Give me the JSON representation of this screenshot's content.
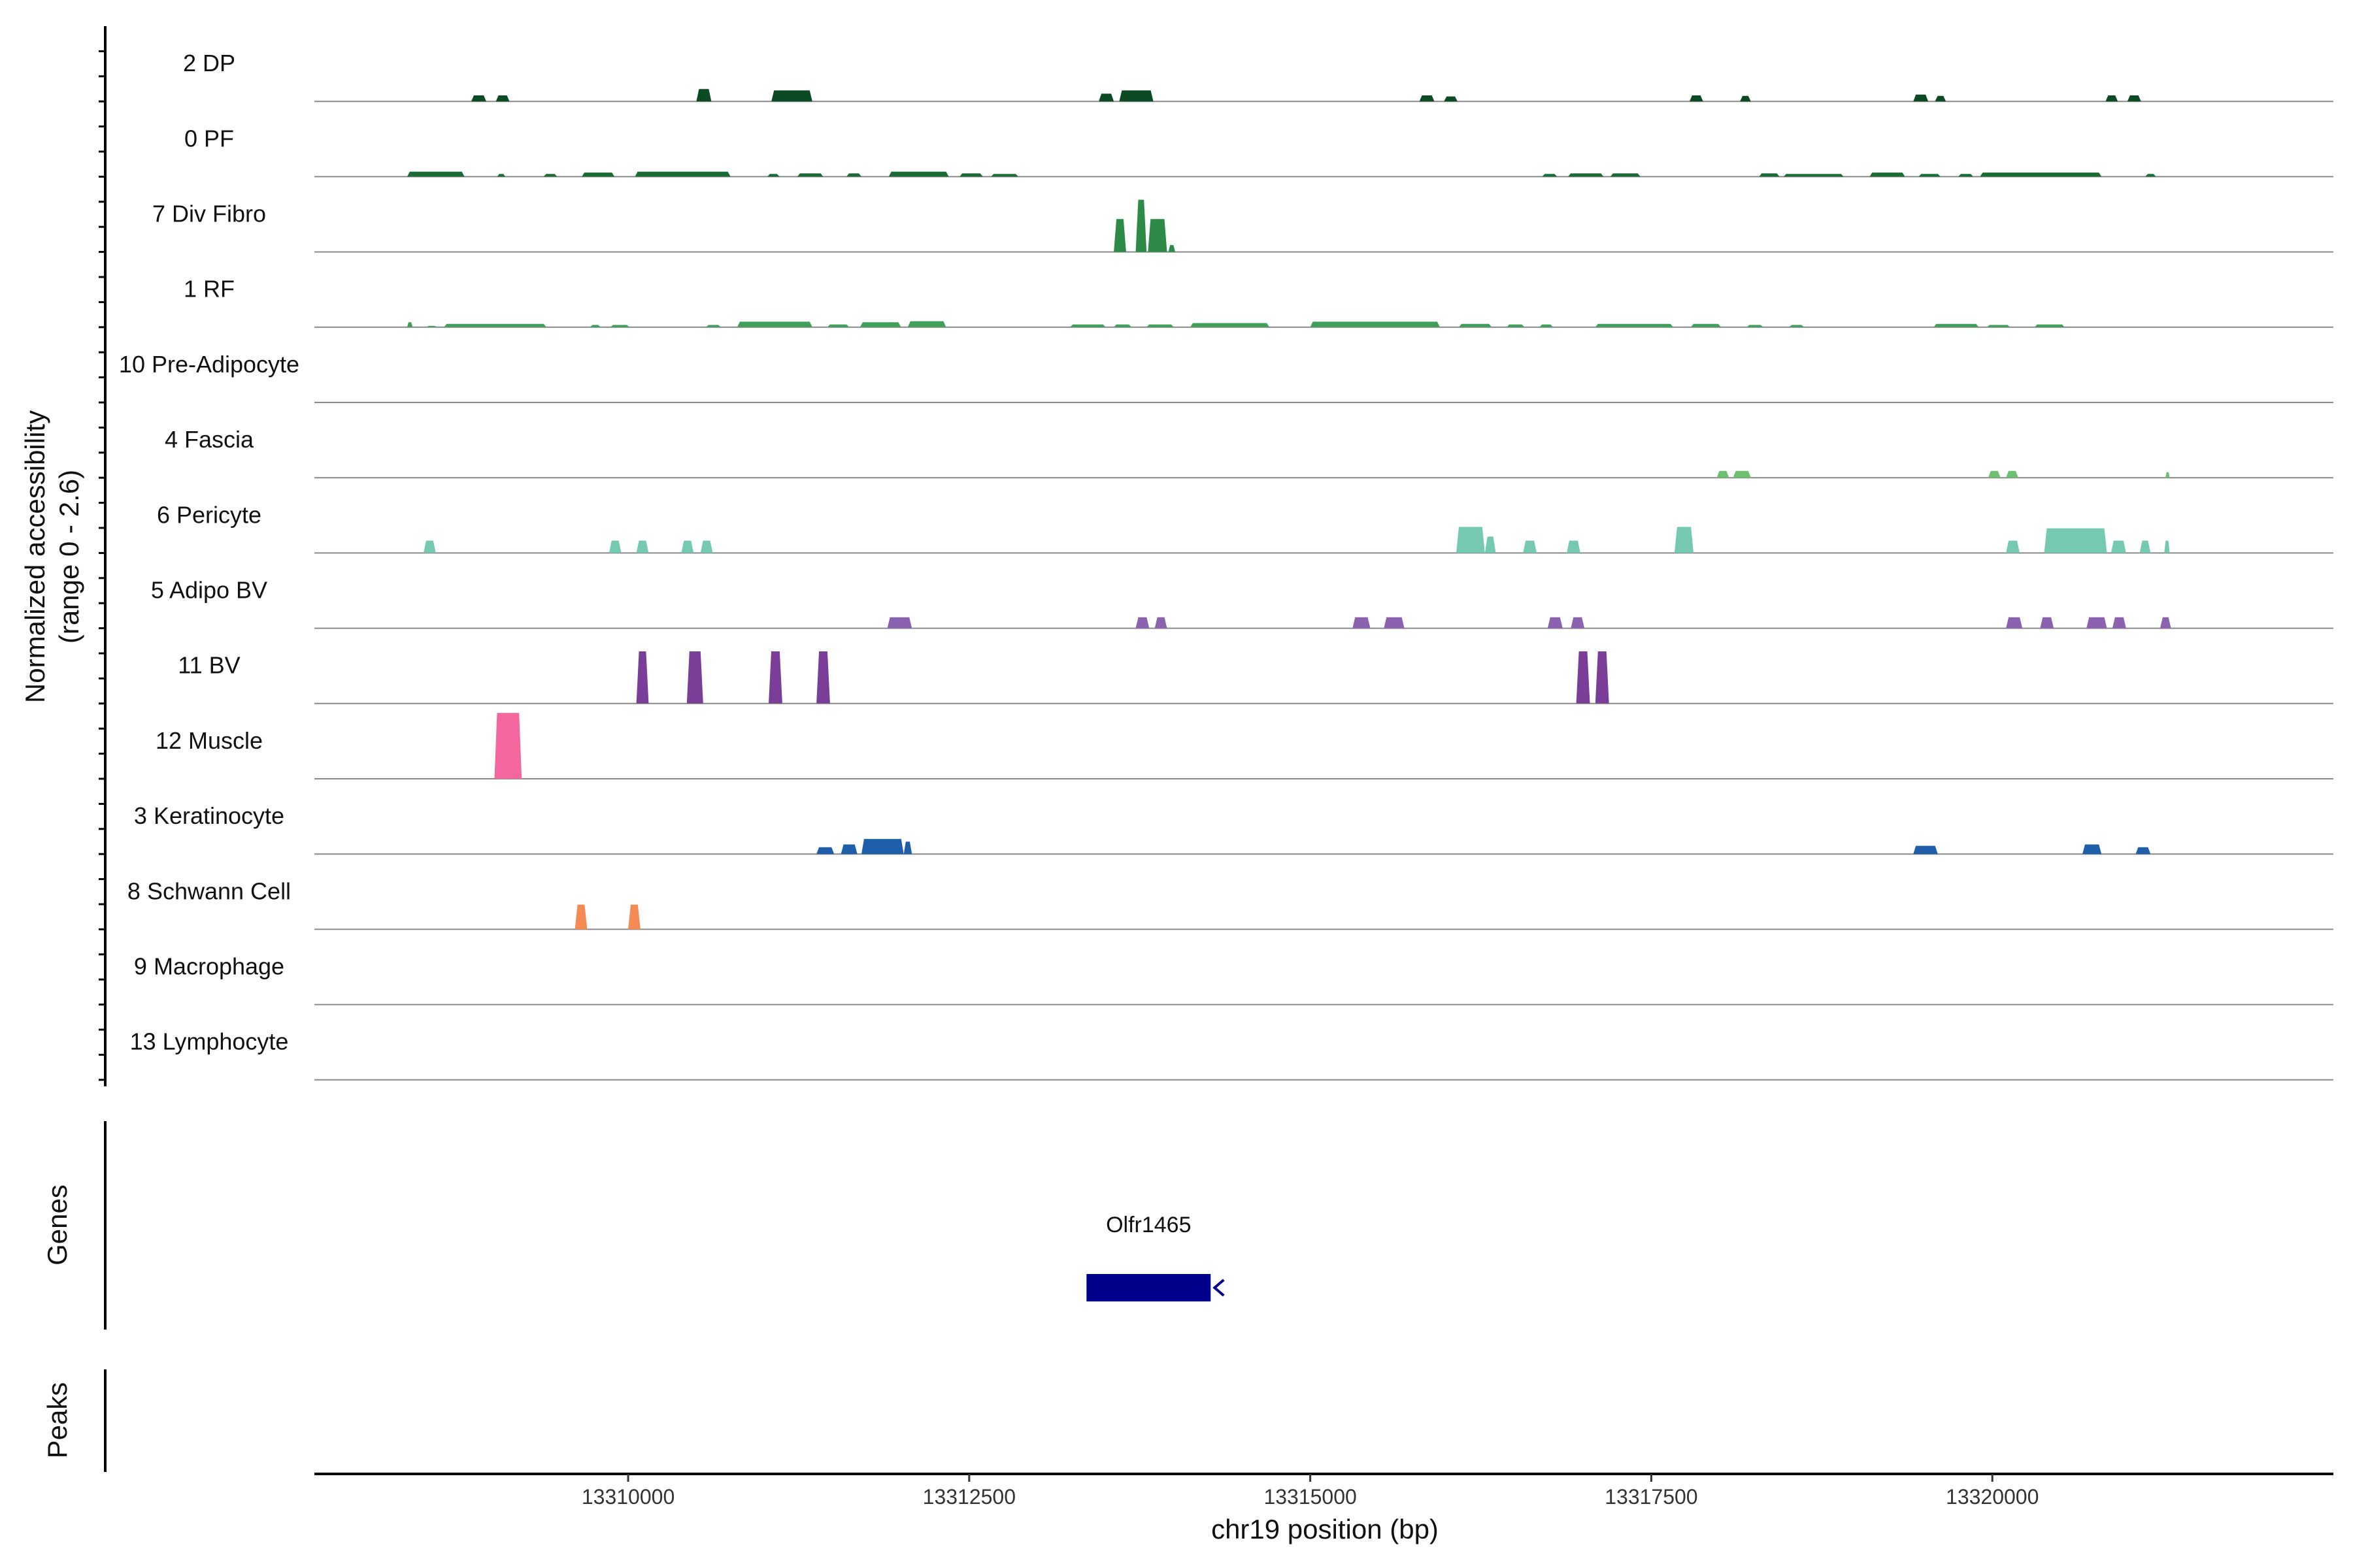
{
  "chart_data": {
    "type": "area",
    "ylabel_line1": "Normalized accessibility",
    "ylabel_line2": "(range 0 - 2.6)",
    "xlabel": "chr19 position (bp)",
    "xlim": [
      13307700,
      13322500
    ],
    "ylim": [
      0,
      2.6
    ],
    "x_ticks": [
      13310000,
      13312500,
      13315000,
      13317500,
      13320000
    ],
    "x_tick_labels": [
      "13310000",
      "13312500",
      "13315000",
      "13317500",
      "13320000"
    ],
    "tracks": [
      {
        "name": "2 DP",
        "color": "#0b4a22",
        "segments": [
          [
            13308850,
            13308960,
            0.22
          ],
          [
            13309030,
            13309130,
            0.22
          ],
          [
            13310500,
            13310610,
            0.45
          ],
          [
            13311050,
            13311350,
            0.4
          ],
          [
            13313450,
            13313560,
            0.28
          ],
          [
            13313600,
            13313850,
            0.4
          ],
          [
            13315800,
            13315910,
            0.22
          ],
          [
            13315980,
            13316080,
            0.18
          ],
          [
            13317780,
            13317880,
            0.22
          ],
          [
            13318150,
            13318230,
            0.2
          ],
          [
            13319420,
            13319530,
            0.25
          ],
          [
            13319580,
            13319660,
            0.2
          ],
          [
            13320830,
            13320920,
            0.22
          ],
          [
            13320990,
            13321090,
            0.22
          ]
        ]
      },
      {
        "name": "0 PF",
        "color": "#1a6b35",
        "segments": [
          [
            13308380,
            13308800,
            0.18
          ],
          [
            13309040,
            13309100,
            0.1
          ],
          [
            13309380,
            13309480,
            0.1
          ],
          [
            13309660,
            13309900,
            0.15
          ],
          [
            13310050,
            13310750,
            0.18
          ],
          [
            13311020,
            13311110,
            0.1
          ],
          [
            13311240,
            13311430,
            0.12
          ],
          [
            13311600,
            13311710,
            0.12
          ],
          [
            13311910,
            13312350,
            0.18
          ],
          [
            13312430,
            13312600,
            0.12
          ],
          [
            13312660,
            13312860,
            0.1
          ],
          [
            13316700,
            13316810,
            0.1
          ],
          [
            13316890,
            13317150,
            0.12
          ],
          [
            13317200,
            13317420,
            0.12
          ],
          [
            13318290,
            13318440,
            0.12
          ],
          [
            13318470,
            13318910,
            0.1
          ],
          [
            13319100,
            13319360,
            0.15
          ],
          [
            13319460,
            13319620,
            0.1
          ],
          [
            13319750,
            13319860,
            0.1
          ],
          [
            13319910,
            13320800,
            0.15
          ],
          [
            13321120,
            13321200,
            0.1
          ]
        ]
      },
      {
        "name": "7 Div Fibro",
        "color": "#2d8a47",
        "segments": [
          [
            13313560,
            13313650,
            1.2
          ],
          [
            13313720,
            13313800,
            1.9
          ],
          [
            13313810,
            13313950,
            1.2
          ],
          [
            13313960,
            13314010,
            0.25
          ]
        ]
      },
      {
        "name": "1 RF",
        "color": "#40a05a",
        "segments": [
          [
            13308380,
            13308420,
            0.18
          ],
          [
            13308520,
            13308600,
            0.05
          ],
          [
            13308650,
            13309400,
            0.12
          ],
          [
            13309720,
            13309800,
            0.08
          ],
          [
            13309870,
            13310010,
            0.08
          ],
          [
            13310570,
            13310680,
            0.08
          ],
          [
            13310800,
            13311350,
            0.2
          ],
          [
            13311460,
            13311620,
            0.1
          ],
          [
            13311700,
            13312000,
            0.18
          ],
          [
            13312050,
            13312330,
            0.22
          ],
          [
            13313240,
            13313500,
            0.1
          ],
          [
            13313560,
            13313690,
            0.1
          ],
          [
            13313800,
            13314000,
            0.1
          ],
          [
            13314120,
            13314700,
            0.15
          ],
          [
            13315000,
            13315950,
            0.2
          ],
          [
            13316090,
            13316330,
            0.12
          ],
          [
            13316440,
            13316570,
            0.1
          ],
          [
            13316680,
            13316780,
            0.1
          ],
          [
            13317090,
            13317660,
            0.12
          ],
          [
            13317790,
            13318010,
            0.12
          ],
          [
            13318200,
            13318320,
            0.08
          ],
          [
            13318510,
            13318620,
            0.08
          ],
          [
            13319570,
            13319900,
            0.12
          ],
          [
            13319960,
            13320130,
            0.08
          ],
          [
            13320310,
            13320530,
            0.1
          ]
        ]
      },
      {
        "name": "10 Pre-Adipocyte",
        "color": "#4daf6a",
        "segments": []
      },
      {
        "name": "4 Fascia",
        "color": "#6cc070",
        "segments": [
          [
            13317980,
            13318070,
            0.25
          ],
          [
            13318100,
            13318230,
            0.25
          ],
          [
            13319970,
            13320060,
            0.25
          ],
          [
            13320100,
            13320190,
            0.25
          ],
          [
            13321270,
            13321300,
            0.2
          ]
        ]
      },
      {
        "name": "6 Pericyte",
        "color": "#74c9b0",
        "segments": [
          [
            13308500,
            13308590,
            0.45
          ],
          [
            13309860,
            13309950,
            0.45
          ],
          [
            13310060,
            13310150,
            0.45
          ],
          [
            13310390,
            13310480,
            0.45
          ],
          [
            13310530,
            13310620,
            0.45
          ],
          [
            13316070,
            13316280,
            0.95
          ],
          [
            13316280,
            13316360,
            0.6
          ],
          [
            13316560,
            13316660,
            0.45
          ],
          [
            13316880,
            13316980,
            0.45
          ],
          [
            13317670,
            13317810,
            0.95
          ],
          [
            13320100,
            13320200,
            0.45
          ],
          [
            13320380,
            13320840,
            0.9
          ],
          [
            13320870,
            13320980,
            0.45
          ],
          [
            13321080,
            13321160,
            0.45
          ],
          [
            13321260,
            13321300,
            0.45
          ]
        ]
      },
      {
        "name": "5 Adipo BV",
        "color": "#8a62b0",
        "segments": [
          [
            13311900,
            13312080,
            0.4
          ],
          [
            13313720,
            13313820,
            0.4
          ],
          [
            13313860,
            13313950,
            0.4
          ],
          [
            13315310,
            13315440,
            0.4
          ],
          [
            13315540,
            13315690,
            0.4
          ],
          [
            13316740,
            13316850,
            0.4
          ],
          [
            13316910,
            13317010,
            0.4
          ],
          [
            13320100,
            13320220,
            0.4
          ],
          [
            13320350,
            13320450,
            0.4
          ],
          [
            13320690,
            13320840,
            0.4
          ],
          [
            13320880,
            13320980,
            0.4
          ],
          [
            13321230,
            13321310,
            0.4
          ]
        ]
      },
      {
        "name": "11 BV",
        "color": "#7a3e98",
        "segments": [
          [
            13310060,
            13310150,
            1.9
          ],
          [
            13310430,
            13310550,
            1.9
          ],
          [
            13311030,
            13311130,
            1.9
          ],
          [
            13311380,
            13311480,
            1.9
          ],
          [
            13316950,
            13317050,
            1.9
          ],
          [
            13317090,
            13317190,
            1.9
          ]
        ]
      },
      {
        "name": "12 Muscle",
        "color": "#f4679e",
        "segments": [
          [
            13309020,
            13309220,
            2.4
          ]
        ]
      },
      {
        "name": "3 Keratinocyte",
        "color": "#1f5ea8",
        "segments": [
          [
            13311380,
            13311510,
            0.25
          ],
          [
            13311560,
            13311680,
            0.35
          ],
          [
            13311710,
            13312020,
            0.55
          ],
          [
            13312020,
            13312080,
            0.45
          ],
          [
            13319420,
            13319600,
            0.3
          ],
          [
            13320660,
            13320800,
            0.35
          ],
          [
            13321050,
            13321160,
            0.25
          ]
        ]
      },
      {
        "name": "8 Schwann Cell",
        "color": "#f58a53",
        "segments": [
          [
            13309610,
            13309700,
            0.9
          ],
          [
            13310000,
            13310090,
            0.9
          ]
        ]
      },
      {
        "name": "9 Macrophage",
        "color": "#aaaaaa",
        "segments": []
      },
      {
        "name": "13 Lymphocyte",
        "color": "#aaaaaa",
        "segments": []
      }
    ],
    "genes_panel_title": "Genes",
    "genes": [
      {
        "name": "Olfr1465",
        "start": 13313360,
        "end": 13314270,
        "strand": "-",
        "color": "#00008b"
      }
    ],
    "peaks_panel_title": "Peaks",
    "peaks": []
  }
}
